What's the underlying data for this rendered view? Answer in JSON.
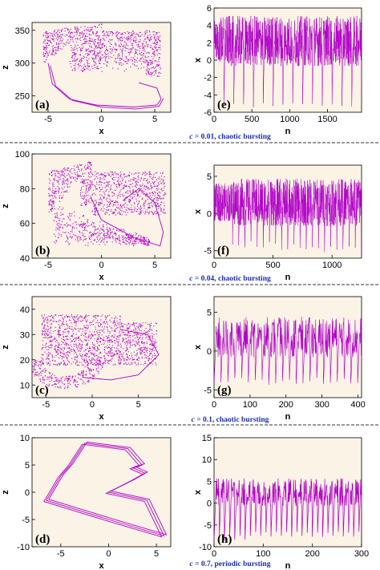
{
  "colors": {
    "trace": "#b000c8",
    "plot_background": "#fbf3e6",
    "caption": "#1a2db5",
    "separator": "#333333"
  },
  "chart_data": [
    {
      "type": "scatter",
      "panel": "(a)",
      "xlabel": "x",
      "ylabel": "z",
      "xlim": [
        -6.5,
        6.5
      ],
      "ylim": [
        225,
        362
      ],
      "xticks": [
        "-5",
        "0",
        "5"
      ],
      "yticks": [
        "250",
        "300",
        "350"
      ],
      "caption_param": "c",
      "caption_text": " = 0.01, chaotic bursting"
    },
    {
      "type": "line",
      "panel": "(e)",
      "xlabel": "n",
      "ylabel": "x",
      "xlim": [
        0,
        1950
      ],
      "ylim": [
        -6,
        6
      ],
      "xticks": [
        "0",
        "500",
        "1000",
        "1500"
      ],
      "yticks": [
        "6",
        "4",
        "2",
        "0",
        "-2",
        "-4",
        "-6"
      ]
    },
    {
      "type": "scatter",
      "panel": "(b)",
      "xlabel": "x",
      "ylabel": "z",
      "xlim": [
        -6.5,
        6.5
      ],
      "ylim": [
        40,
        100
      ],
      "xticks": [
        "-5",
        "0",
        "5"
      ],
      "yticks": [
        "40",
        "60",
        "80",
        "100"
      ],
      "caption_param": "c",
      "caption_text": " = 0.04, chaotic bursting"
    },
    {
      "type": "line",
      "panel": "(f)",
      "xlabel": "n",
      "ylabel": "x",
      "xlim": [
        0,
        1250
      ],
      "ylim": [
        -6,
        6.5
      ],
      "xticks": [
        "0",
        "500",
        "1000"
      ],
      "yticks": [
        "5",
        "0",
        "-5"
      ]
    },
    {
      "type": "scatter",
      "panel": "(c)",
      "xlabel": "x",
      "ylabel": "z",
      "xlim": [
        -6.5,
        8.5
      ],
      "ylim": [
        5,
        45
      ],
      "xticks": [
        "-5",
        "0",
        "5"
      ],
      "yticks": [
        "10",
        "20",
        "30",
        "40"
      ],
      "caption_param": "c",
      "caption_text": " = 0.1, chaotic bursting"
    },
    {
      "type": "line",
      "panel": "(g)",
      "xlabel": "n",
      "ylabel": "x",
      "xlim": [
        0,
        410
      ],
      "ylim": [
        -6,
        7
      ],
      "xticks": [
        "0",
        "100",
        "200",
        "300",
        "400"
      ],
      "yticks": [
        "5",
        "0",
        "-5"
      ]
    },
    {
      "type": "line",
      "panel": "(d)",
      "xlabel": "x",
      "ylabel": "z",
      "xlim": [
        -8,
        6.5
      ],
      "ylim": [
        -10,
        10
      ],
      "xticks": [
        "-5",
        "0",
        "5"
      ],
      "yticks": [
        "10",
        "5",
        "0",
        "-5",
        "-10"
      ],
      "caption_param": "c",
      "caption_text": " = 0.7, periodic bursting"
    },
    {
      "type": "line",
      "panel": "(h)",
      "xlabel": "n",
      "ylabel": "x",
      "xlim": [
        0,
        300
      ],
      "ylim": [
        -10,
        15
      ],
      "xticks": [
        "0",
        "100",
        "200",
        "300"
      ],
      "yticks": [
        "15",
        "10",
        "5",
        "0",
        "-5",
        "-10"
      ]
    }
  ]
}
